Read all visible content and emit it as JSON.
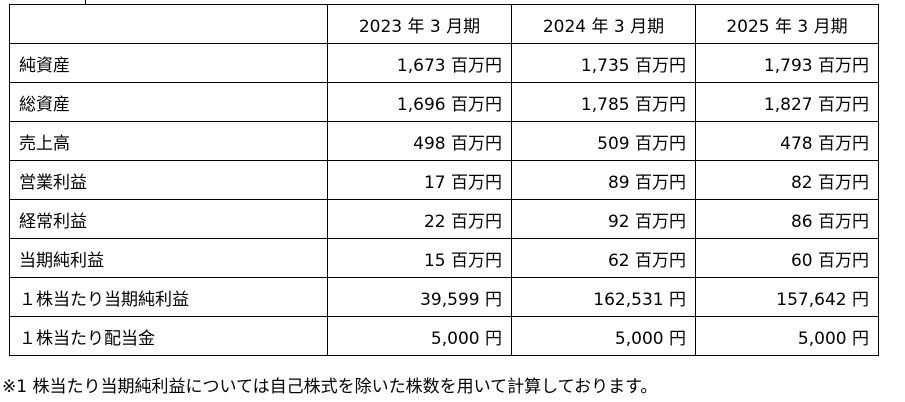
{
  "table": {
    "header": [
      "",
      "2023 年 3 月期",
      "2024 年 3 月期",
      "2025 年 3 月期"
    ],
    "rows": [
      [
        "純資産",
        "1,673 百万円",
        "1,735 百万円",
        "1,793 百万円"
      ],
      [
        "総資産",
        "1,696 百万円",
        "1,785 百万円",
        "1,827 百万円"
      ],
      [
        "売上高",
        "498 百万円",
        "509 百万円",
        "478 百万円"
      ],
      [
        "営業利益",
        "17 百万円",
        "89 百万円",
        "82 百万円"
      ],
      [
        "経常利益",
        "22 百万円",
        "92 百万円",
        "86 百万円"
      ],
      [
        "当期純利益",
        "15 百万円",
        "62 百万円",
        "60 百万円"
      ],
      [
        "１株当たり当期純利益",
        "39,599 円",
        "162,531 円",
        "157,642 円"
      ],
      [
        "１株当たり配当金",
        "5,000 円",
        "5,000 円",
        "5,000 円"
      ]
    ]
  },
  "footnote": "※1 株当たり当期純利益については自己株式を除いた株数を用いて計算しております。"
}
